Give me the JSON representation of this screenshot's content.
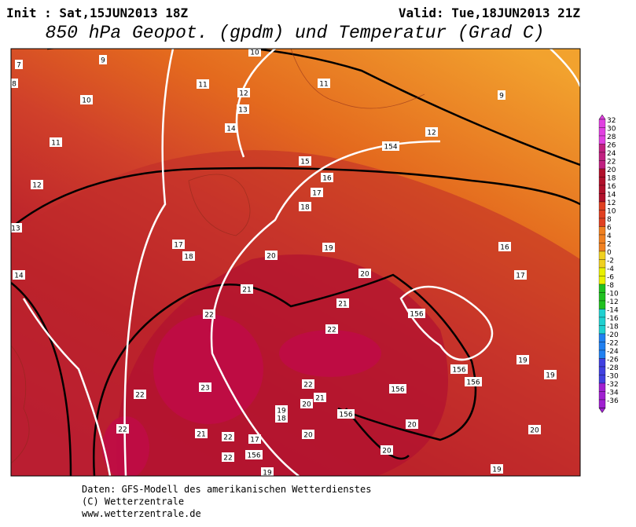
{
  "header": {
    "init": "Init : Sat,15JUN2013 18Z",
    "valid": "Valid: Tue,18JUN2013 21Z",
    "title": "850 hPa Geopot. (gpdm) und Temperatur (Grad C)"
  },
  "scale": {
    "labels": [
      32,
      30,
      28,
      26,
      24,
      22,
      20,
      18,
      16,
      14,
      12,
      10,
      8,
      6,
      4,
      2,
      0,
      -2,
      -4,
      -6,
      -8,
      -10,
      -12,
      -14,
      -16,
      -18,
      -20,
      -22,
      -24,
      -26,
      -28,
      -30,
      -32,
      -34,
      -36
    ]
  },
  "map": {
    "labels": [
      "7",
      "9",
      "10",
      "8",
      "11",
      "11",
      "10",
      "12",
      "9",
      "13",
      "14",
      "12",
      "11",
      "154",
      "15",
      "16",
      "12",
      "17",
      "18",
      "13",
      "17",
      "19",
      "16",
      "18",
      "20",
      "20",
      "14",
      "17",
      "21",
      "21",
      "156",
      "22",
      "22",
      "19",
      "156",
      "19",
      "156",
      "23",
      "22",
      "21",
      "156",
      "22",
      "20",
      "19",
      "18",
      "156",
      "22",
      "21",
      "22",
      "20",
      "20",
      "17",
      "20",
      "22",
      "156",
      "20",
      "19",
      "19"
    ]
  },
  "footer": {
    "lines": [
      "Daten: GFS-Modell des amerikanischen Wetterdienstes",
      "(C) Wetterzentrale",
      "www.wetterzentrale.de"
    ]
  }
}
